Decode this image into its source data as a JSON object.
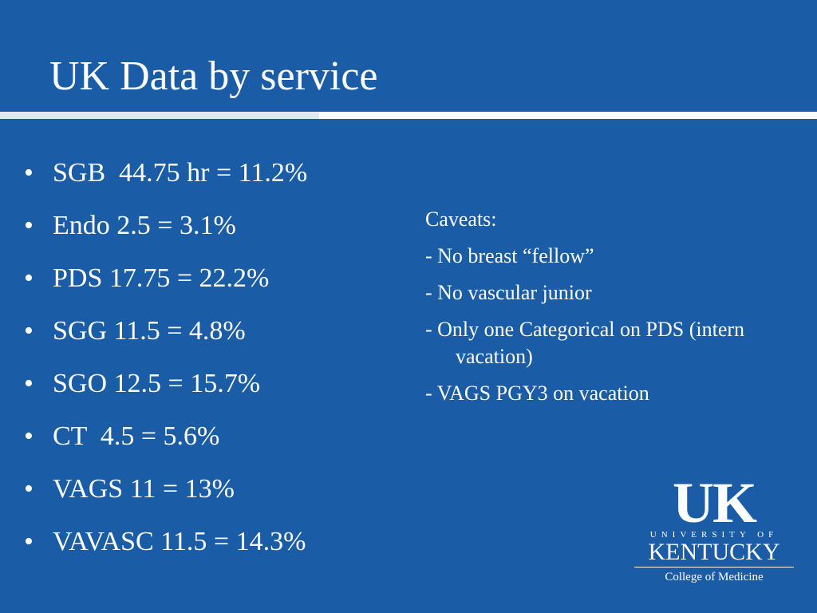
{
  "header": {
    "title": "UK Data by service"
  },
  "bullets": [
    "SGB  44.75 hr = 11.2%",
    "Endo 2.5 = 3.1%",
    "PDS 17.75 = 22.2%",
    "SGG 11.5 = 4.8%",
    "SGO 12.5 = 15.7%",
    "CT  4.5 = 5.6%",
    "VAGS 11 = 13%",
    "VAVASC 11.5 = 14.3%"
  ],
  "caveats": {
    "heading": "Caveats:",
    "items": [
      "- No breast “fellow”",
      "- No vascular junior",
      "- Only one Categorical on PDS (intern vacation)",
      "- VAGS PGY3 on vacation"
    ]
  },
  "logo": {
    "mark": "UK",
    "line1": "UNIVERSITY OF",
    "line2": "KENTUCKY",
    "line3": "College of Medicine"
  }
}
